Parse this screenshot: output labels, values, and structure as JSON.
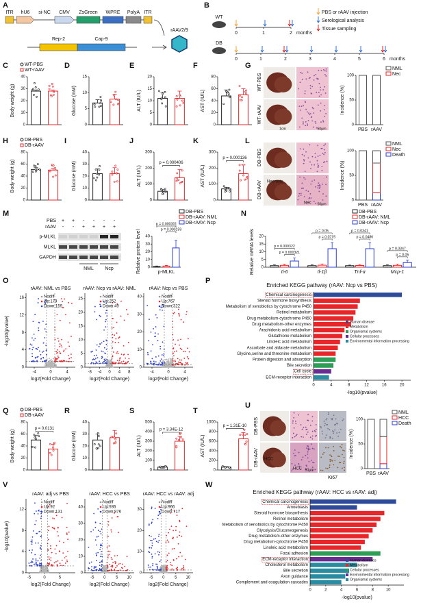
{
  "panels": {
    "A": {
      "label": "A",
      "top": [
        "ITR",
        "hU6",
        "si-NC",
        "CMV",
        "ZsGreen",
        "WPRE",
        "PolyA",
        "ITR"
      ],
      "bottom": [
        "Rep-2",
        "Cap-9"
      ],
      "virus": "rAAV2/9"
    },
    "B": {
      "label": "B",
      "groups": [
        "WT",
        "DB"
      ],
      "wt_ticks": [
        0,
        1,
        2
      ],
      "db_ticks": [
        0,
        1,
        2,
        3,
        4,
        5,
        6
      ],
      "unit": "months",
      "legend": [
        "PBS or rAAV injection",
        "Serological analysis",
        "Tissue sampling"
      ]
    },
    "C": {
      "label": "C",
      "ylabel": "Body weight (g)",
      "ylim": [
        0,
        40
      ],
      "yticks": [
        0,
        10,
        20,
        30,
        40
      ],
      "series": [
        {
          "name": "WT-PBS",
          "color": "#222222",
          "mean": 28,
          "err": 1
        },
        {
          "name": "WT-rAAV",
          "color": "#e8262a",
          "mean": 28,
          "err": 1
        }
      ]
    },
    "D": {
      "label": "D",
      "ylabel": "Glucose (mM)",
      "ylim": [
        0,
        15
      ],
      "yticks": [
        0,
        5,
        10,
        15
      ],
      "series": [
        {
          "color": "#222222",
          "mean": 6.8,
          "err": 1
        },
        {
          "color": "#e8262a",
          "mean": 8,
          "err": 1.5
        }
      ]
    },
    "E": {
      "label": "E",
      "ylabel": "ALT (IU/L)",
      "ylim": [
        0,
        20
      ],
      "yticks": [
        0,
        5,
        10,
        15,
        20
      ],
      "series": [
        {
          "color": "#222222",
          "mean": 11,
          "err": 2.5
        },
        {
          "color": "#e8262a",
          "mean": 11,
          "err": 3
        }
      ]
    },
    "F": {
      "label": "F",
      "ylabel": "AST (IU/L)",
      "ylim": [
        0,
        80
      ],
      "yticks": [
        0,
        20,
        40,
        60,
        80
      ],
      "series": [
        {
          "color": "#222222",
          "mean": 48,
          "err": 10
        },
        {
          "color": "#e8262a",
          "mean": 50,
          "err": 10
        }
      ]
    },
    "G": {
      "label": "G",
      "photo_labels": [
        "WT-PBS",
        "WT-rAAV"
      ],
      "scale_bars": [
        "1cm",
        "50μm"
      ],
      "incidence": {
        "ylabel": "Incidence (%)",
        "ylim": [
          0,
          100
        ],
        "yticks": [
          0,
          50,
          100
        ],
        "categories": [
          "PBS",
          "rAAV"
        ],
        "series": [
          {
            "name": "Nec",
            "color": "#e8262a",
            "values": [
              0,
              0
            ]
          },
          {
            "name": "NML",
            "color": "#555555",
            "values": [
              100,
              100
            ]
          }
        ]
      }
    },
    "H": {
      "label": "H",
      "ylabel": "Body weight (g)",
      "ylim": [
        0,
        80
      ],
      "yticks": [
        0,
        20,
        40,
        60,
        80
      ],
      "series": [
        {
          "name": "DB-PBS",
          "color": "#222222",
          "mean": 51,
          "err": 3
        },
        {
          "name": "DB-rAAV",
          "color": "#e8262a",
          "mean": 50,
          "err": 3
        }
      ]
    },
    "I": {
      "label": "I",
      "ylabel": "Glucose (mM)",
      "ylim": [
        0,
        40
      ],
      "yticks": [
        0,
        10,
        20,
        30,
        40
      ],
      "series": [
        {
          "color": "#222222",
          "mean": 22,
          "err": 4
        },
        {
          "color": "#e8262a",
          "mean": 22,
          "err": 5
        }
      ]
    },
    "J": {
      "label": "J",
      "ylabel": "ALT (IU/L)",
      "ylim": [
        0,
        300
      ],
      "yticks": [
        0,
        100,
        200,
        300
      ],
      "p": "p = 0.000406",
      "series": [
        {
          "color": "#222222",
          "mean": 55,
          "err": 10
        },
        {
          "color": "#e8262a",
          "mean": 140,
          "err": 50
        }
      ]
    },
    "K": {
      "label": "K",
      "ylabel": "AST (IU/L)",
      "ylim": [
        0,
        300
      ],
      "yticks": [
        0,
        100,
        200,
        300
      ],
      "p": "p = 0.000136",
      "series": [
        {
          "color": "#222222",
          "mean": 70,
          "err": 10
        },
        {
          "color": "#e8262a",
          "mean": 165,
          "err": 55
        }
      ]
    },
    "L": {
      "label": "L",
      "photo_labels": [
        "DB-PBS",
        "DB-rAAV"
      ],
      "notes": [
        "Necrosis",
        "Nec"
      ],
      "scale_bars": [
        "50μm"
      ],
      "incidence": {
        "ylabel": "Incidence (%)",
        "ylim": [
          0,
          100
        ],
        "yticks": [
          0,
          50,
          100
        ],
        "categories": [
          "PBS",
          "rAAV"
        ],
        "series": [
          {
            "name": "Death",
            "color": "#2a3fd0",
            "values": [
              0,
              15
            ]
          },
          {
            "name": "Nec",
            "color": "#e8262a",
            "values": [
              0,
              60
            ]
          },
          {
            "name": "NML",
            "color": "#555555",
            "values": [
              100,
              25
            ]
          }
        ]
      }
    },
    "M": {
      "label": "M",
      "rows": [
        "PBS",
        "rAAV"
      ],
      "signs": [
        [
          "+",
          "+",
          "-",
          "-",
          "-",
          "-"
        ],
        [
          "-",
          "-",
          "+",
          "+",
          "+",
          "+"
        ]
      ],
      "bands": [
        "p-MLKL",
        "MLKL",
        "GAPDH"
      ],
      "groups": [
        "NML",
        "Ncp"
      ],
      "chart": {
        "ylabel": "Relative protein level",
        "ylim": [
          0,
          40
        ],
        "yticks": [
          0,
          10,
          20,
          30,
          40
        ],
        "category": "p-MLKL",
        "p_values": [
          "p = 0.000301",
          "p = 0.000159"
        ],
        "series": [
          {
            "name": "DB-PBS",
            "color": "#222222",
            "mean": 1,
            "err": 0.5
          },
          {
            "name": "DB-rAAV: NML",
            "color": "#e8262a",
            "mean": 1.5,
            "err": 0.8
          },
          {
            "name": "DB-rAAV: Ncp",
            "color": "#2a3fd0",
            "mean": 25,
            "err": 10
          }
        ]
      }
    },
    "N": {
      "label": "N",
      "ylabel": "Relative mRNA levels",
      "ylim": [
        0,
        20
      ],
      "yticks": [
        0,
        5,
        10,
        15,
        20
      ],
      "categories": [
        "Il-6",
        "Il-1β",
        "Tnf-α",
        "Mcp-1"
      ],
      "p_values": [
        [
          "p = 0.000322",
          "p = 0.000321"
        ],
        [
          "p = 0.05",
          "p = 0.0715"
        ],
        [
          "p = 0.0341",
          "p = 0.0486"
        ],
        [
          "p = 0.0347",
          "p = 0.05"
        ]
      ],
      "series": [
        {
          "name": "DB-PBS",
          "color": "#222222",
          "values": [
            1,
            1,
            1,
            1
          ],
          "errs": [
            0.5,
            0.5,
            0.4,
            0.5
          ]
        },
        {
          "name": "DB-rAAV: NML",
          "color": "#e8262a",
          "values": [
            1.2,
            1.3,
            1.1,
            1.2
          ],
          "errs": [
            0.6,
            0.8,
            0.5,
            0.7
          ]
        },
        {
          "name": "DB-rAAV: Ncp",
          "color": "#2a3fd0",
          "values": [
            4,
            12,
            12,
            3
          ],
          "errs": [
            2,
            4,
            4,
            1.5
          ]
        }
      ]
    },
    "O": {
      "label": "O",
      "ylabel": "-log10(pvalue)",
      "xlabel": "log2(Fold Change)",
      "plots": [
        {
          "title": "rAAV: NML vs PBS",
          "legend": [
            "Nodiff",
            "Up:179",
            "Down:159"
          ],
          "xlim": [
            -6,
            6
          ],
          "xticks": [
            -4,
            0,
            4
          ],
          "ylim": [
            0,
            17
          ],
          "yticks": [
            0,
            4,
            8,
            12,
            16
          ]
        },
        {
          "title": "rAAV: Ncp vs rAAV: NML",
          "legend": [
            "Nodiff",
            "Up:252",
            "Down:49"
          ],
          "xlim": [
            -10,
            10
          ],
          "xticks": [
            -8,
            -4,
            0,
            4,
            8
          ],
          "ylim": [
            0,
            27
          ],
          "yticks": [
            0,
            5,
            10,
            15,
            20,
            25
          ]
        },
        {
          "title": "rAAV: Ncp vs PBS",
          "legend": [
            "Nodiff",
            "Up:767",
            "Down:322"
          ],
          "xlim": [
            -6,
            6
          ],
          "xticks": [
            -4,
            0,
            4
          ],
          "ylim": [
            0,
            42
          ],
          "yticks": [
            0,
            10,
            20,
            30,
            40
          ]
        }
      ]
    },
    "P": {
      "label": "P",
      "title": "Enriched KEGG pathway (rAAV: Ncp vs PBS)",
      "xlabel": "-log10(pvalue)",
      "xlim": [
        0,
        22
      ],
      "xticks": [
        0,
        4,
        8,
        12,
        16,
        20
      ],
      "categories": [
        "Chemical carcinogenesis",
        "Steroid hormone biosynthesis",
        "Metabolism of xenobiotics by cytochrome P450",
        "Retinol metabolism",
        "Drug metabolism-cytochrome P450",
        "Drug metabolism-other enzymes",
        "Arachidonic acid metabolism",
        "Glutathione metabolism",
        "Linoleic acid metabolism",
        "Ascorbate and aldarate metabolism",
        "Glycine,serine and threonine metabolism",
        "Protein digestion and absorption",
        "Bile secretion",
        "Cell cycle",
        "ECM-receptor interaction"
      ],
      "values": [
        20,
        10.5,
        10,
        9.5,
        9,
        8.5,
        7,
        6.5,
        6,
        5.5,
        5,
        5,
        4.5,
        4,
        3.5
      ],
      "class_of": [
        0,
        1,
        1,
        1,
        1,
        1,
        1,
        1,
        1,
        1,
        1,
        2,
        2,
        3,
        4
      ],
      "boxed": [
        0,
        13
      ],
      "classes": [
        {
          "name": "Human disease",
          "color": "#2e4a9a"
        },
        {
          "name": "Metabolism",
          "color": "#e8262a"
        },
        {
          "name": "Organismal systems",
          "color": "#2e9e57"
        },
        {
          "name": "Cellular processes",
          "color": "#6a2c91"
        },
        {
          "name": "Environmental information processing",
          "color": "#2a8ca0"
        }
      ]
    },
    "Q": {
      "label": "Q",
      "ylabel": "Body weight (g)",
      "ylim": [
        0,
        80
      ],
      "yticks": [
        0,
        20,
        40,
        60,
        80
      ],
      "p": "p = 0.0131",
      "series": [
        {
          "name": "DB-PBS",
          "color": "#222222",
          "mean": 50,
          "err": 8
        },
        {
          "name": "DB-rAAV",
          "color": "#e8262a",
          "mean": 35,
          "err": 8
        }
      ]
    },
    "R": {
      "label": "R",
      "ylabel": "Glucose (mM)",
      "ylim": [
        0,
        40
      ],
      "yticks": [
        0,
        10,
        20,
        30,
        40
      ],
      "series": [
        {
          "color": "#222222",
          "mean": 25,
          "err": 5
        },
        {
          "color": "#e8262a",
          "mean": 27,
          "err": 6
        }
      ]
    },
    "S": {
      "label": "S",
      "ylabel": "ALT (IU/L)",
      "ylim": [
        0,
        500
      ],
      "yticks": [
        0,
        100,
        200,
        300,
        400,
        500
      ],
      "p": "p = 3.34E-12",
      "series": [
        {
          "color": "#222222",
          "mean": 30,
          "err": 8
        },
        {
          "color": "#e8262a",
          "mean": 300,
          "err": 50
        }
      ]
    },
    "T": {
      "label": "T",
      "ylabel": "AST (IU/L)",
      "ylim": [
        0,
        1000
      ],
      "yticks": [
        0,
        200,
        400,
        600,
        800,
        1000
      ],
      "p": "p = 1.31E-10",
      "series": [
        {
          "color": "#222222",
          "mean": 60,
          "err": 10
        },
        {
          "color": "#e8262a",
          "mean": 650,
          "err": 130
        }
      ]
    },
    "U": {
      "label": "U",
      "photo_labels": [
        "DB-PBS",
        "DB-rAAV"
      ],
      "notes": [
        "HCC",
        "HCC",
        "Ki67"
      ],
      "scale_bars": [
        "50μm"
      ],
      "incidence": {
        "ylabel": "Incidence (%)",
        "ylim": [
          0,
          100
        ],
        "yticks": [
          0,
          50,
          100
        ],
        "categories": [
          "PBS",
          "rAAV"
        ],
        "series": [
          {
            "name": "Death",
            "color": "#2a3fd0",
            "values": [
              0,
              10
            ]
          },
          {
            "name": "HCC",
            "color": "#e8262a",
            "values": [
              0,
              55
            ]
          },
          {
            "name": "NML",
            "color": "#555555",
            "values": [
              100,
              35
            ]
          }
        ]
      }
    },
    "V": {
      "label": "V",
      "ylabel": "-log10(pvalue)",
      "xlabel": "log2(Fold Change)",
      "plots": [
        {
          "title": "rAAV: adj vs PBS",
          "legend": [
            "Nodiff",
            "Up:92",
            "Down:131"
          ],
          "xlim": [
            -6,
            10
          ],
          "xticks": [
            -5,
            0,
            5
          ],
          "ylim": [
            0,
            14
          ],
          "yticks": [
            0,
            4,
            8,
            12
          ]
        },
        {
          "title": "rAAV: HCC vs PBS",
          "legend": [
            "Nodiff",
            "Up:936",
            "Down:876"
          ],
          "xlim": [
            -8,
            12
          ],
          "xticks": [
            -5,
            0,
            5,
            10
          ],
          "ylim": [
            0,
            45
          ],
          "yticks": [
            0,
            10,
            20,
            30,
            40
          ]
        },
        {
          "title": "rAAV: HCC vs rAAV: adj",
          "legend": [
            "Nodiff",
            "Up:966",
            "Down:717"
          ],
          "xlim": [
            -8,
            12
          ],
          "xticks": [
            -5,
            0,
            5,
            10
          ],
          "ylim": [
            0,
            35
          ],
          "yticks": [
            0,
            10,
            20,
            30
          ]
        }
      ]
    },
    "W": {
      "label": "W",
      "title": "Enriched KEGG pathway (rAAV: HCC vs rAAV: adj)",
      "xlabel": "-log10(pvalue)",
      "xlim": [
        0,
        12
      ],
      "xticks": [
        0,
        2,
        4,
        6,
        8,
        10
      ],
      "categories": [
        "Chemical carcinogenesis",
        "Amoebiasis",
        "Steroid hormone biosynthesis",
        "Retinol metabolism",
        "Metabolism of xenobiotics by cytochrome P450",
        "Glycolysis/Gluconeogenesis",
        "Drug metabolism-other enzymes",
        "Drug metabolism-cytochrome P450",
        "Linoleic acid metabolism",
        "Focal adhesion",
        "ECM-receptor interaction",
        "Cholesterol metabolism",
        "Bile secretion",
        "Axon guidance",
        "Complement and coagulation cascades"
      ],
      "values": [
        11,
        6,
        9.5,
        9,
        8.5,
        8,
        7.5,
        7,
        6.5,
        9,
        8,
        6,
        5,
        4.5,
        4
      ],
      "class_of": [
        0,
        0,
        1,
        1,
        1,
        1,
        1,
        1,
        1,
        2,
        3,
        4,
        4,
        4,
        4
      ],
      "boxed": [
        0,
        10
      ],
      "classes": [
        {
          "name": "Human diseases",
          "color": "#2e4a9a"
        },
        {
          "name": "Metabolism",
          "color": "#e8262a"
        },
        {
          "name": "Cellular processes",
          "color": "#2e9e57"
        },
        {
          "name": "Environmental information processing",
          "color": "#6a2c91"
        },
        {
          "name": "Organismal systems",
          "color": "#2a8ca0"
        }
      ]
    }
  }
}
